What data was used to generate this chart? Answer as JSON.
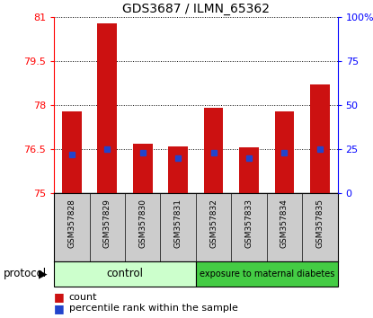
{
  "title": "GDS3687 / ILMN_65362",
  "samples": [
    "GSM357828",
    "GSM357829",
    "GSM357830",
    "GSM357831",
    "GSM357832",
    "GSM357833",
    "GSM357834",
    "GSM357835"
  ],
  "count_values": [
    77.8,
    80.8,
    76.7,
    76.6,
    77.9,
    76.55,
    77.8,
    78.7
  ],
  "percentile_values": [
    22,
    25,
    23,
    20,
    23,
    20,
    23,
    25
  ],
  "bar_bottom": 75.0,
  "ylim_left": [
    75,
    81
  ],
  "ylim_right": [
    0,
    100
  ],
  "yticks_left": [
    75,
    76.5,
    78,
    79.5,
    81
  ],
  "yticks_right": [
    0,
    25,
    50,
    75,
    100
  ],
  "ytick_labels_right": [
    "0",
    "25",
    "50",
    "75",
    "100%"
  ],
  "bar_color": "#cc1111",
  "blue_color": "#2244cc",
  "control_color": "#ccffcc",
  "diabetes_color": "#44cc44",
  "bar_width": 0.55,
  "grid_color": "black"
}
